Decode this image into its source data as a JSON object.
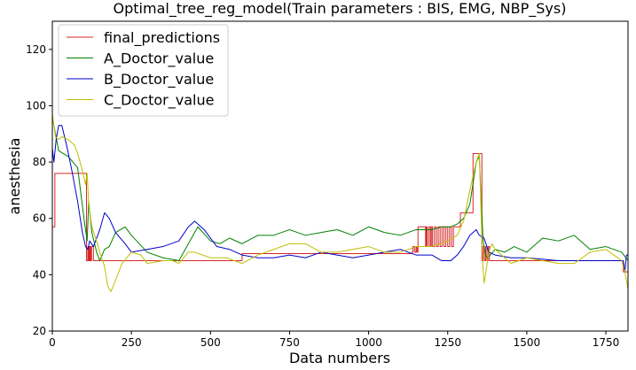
{
  "chart_data": {
    "type": "line",
    "title": "Optimal_tree_reg_model(Train parameters : BIS, EMG, NBP_Sys)",
    "xlabel": "Data numbers",
    "ylabel": "anesthesia",
    "xlim": [
      0,
      1820
    ],
    "ylim": [
      20,
      130
    ],
    "xticks": [
      0,
      250,
      500,
      750,
      1000,
      1250,
      1500,
      1750
    ],
    "yticks": [
      20,
      40,
      60,
      80,
      100,
      120
    ],
    "grid": false,
    "legend_position": "top-left",
    "series": [
      {
        "name": "final_predictions",
        "color": "#d62728",
        "style": "step",
        "x": [
          0,
          8,
          10,
          108,
          112,
          114,
          116,
          118,
          120,
          122,
          124,
          130,
          600,
          620,
          1000,
          1138,
          1140,
          1145,
          1150,
          1153,
          1156,
          1172,
          1180,
          1182,
          1185,
          1190,
          1195,
          1198,
          1202,
          1208,
          1214,
          1220,
          1226,
          1232,
          1238,
          1244,
          1250,
          1256,
          1262,
          1268,
          1274,
          1280,
          1290,
          1300,
          1330,
          1332,
          1358,
          1362,
          1366,
          1370,
          1374,
          1378,
          1382,
          1400,
          1600,
          1800,
          1805,
          1820
        ],
        "y": [
          57,
          76,
          76,
          45,
          50,
          45,
          50,
          45,
          50,
          45,
          50,
          45,
          47.5,
          47.5,
          47.5,
          48,
          50,
          48,
          50,
          48,
          57,
          57,
          50,
          57,
          50,
          57,
          50,
          57,
          50,
          57,
          50,
          57,
          50,
          57,
          50,
          57,
          50,
          57,
          50,
          57,
          57,
          57,
          62,
          62,
          83,
          83,
          45,
          50,
          45,
          50,
          45,
          50,
          45,
          45,
          45,
          45,
          41,
          45
        ]
      },
      {
        "name": "A_Doctor_value",
        "color": "#008000",
        "style": "line",
        "x": [
          0,
          20,
          50,
          80,
          100,
          110,
          115,
          125,
          140,
          150,
          165,
          180,
          200,
          230,
          250,
          300,
          350,
          400,
          430,
          460,
          500,
          530,
          560,
          600,
          650,
          700,
          750,
          800,
          850,
          900,
          950,
          1000,
          1050,
          1100,
          1150,
          1200,
          1230,
          1260,
          1280,
          1300,
          1320,
          1340,
          1350,
          1355,
          1362,
          1370,
          1375,
          1385,
          1400,
          1430,
          1460,
          1500,
          1550,
          1600,
          1650,
          1700,
          1750,
          1800,
          1820
        ],
        "y": [
          96,
          84,
          82,
          78,
          60,
          52,
          66,
          55,
          48,
          45,
          49,
          50,
          55,
          57,
          54,
          48,
          46,
          45,
          51,
          57,
          52,
          51,
          53,
          51,
          54,
          54,
          56,
          54,
          55,
          56,
          54,
          57,
          55,
          54,
          56,
          56,
          57,
          57,
          58,
          60,
          65,
          80,
          82,
          68,
          52,
          47,
          46,
          47,
          49,
          48,
          50,
          48,
          53,
          52,
          54,
          49,
          50,
          48,
          45
        ]
      },
      {
        "name": "B_Doctor_value",
        "color": "#0000cc",
        "style": "line",
        "x": [
          0,
          5,
          12,
          20,
          30,
          45,
          60,
          80,
          95,
          105,
          112,
          118,
          130,
          150,
          165,
          180,
          200,
          230,
          250,
          300,
          350,
          400,
          430,
          450,
          480,
          520,
          560,
          600,
          650,
          700,
          750,
          800,
          850,
          900,
          950,
          1000,
          1050,
          1100,
          1150,
          1200,
          1230,
          1260,
          1280,
          1300,
          1320,
          1340,
          1350,
          1365,
          1380,
          1400,
          1450,
          1500,
          1600,
          1700,
          1780,
          1805,
          1810,
          1815,
          1820
        ],
        "y": [
          85,
          80,
          88,
          93,
          93,
          86,
          78,
          66,
          55,
          50,
          49,
          52,
          50,
          56,
          62,
          60,
          55,
          51,
          48,
          49,
          50,
          52,
          57,
          59,
          56,
          50,
          49,
          47,
          46,
          46,
          47,
          46,
          48,
          47,
          46,
          47,
          48,
          49,
          47,
          47,
          45,
          45,
          47,
          50,
          54,
          56,
          54,
          53,
          48,
          47,
          46,
          46,
          45,
          45,
          45,
          45,
          41,
          47,
          47
        ]
      },
      {
        "name": "C_Doctor_value",
        "color": "#bfbf00",
        "style": "line",
        "x": [
          0,
          10,
          20,
          30,
          50,
          60,
          70,
          80,
          95,
          105,
          110,
          115,
          125,
          140,
          150,
          165,
          175,
          185,
          200,
          220,
          250,
          280,
          300,
          350,
          380,
          400,
          430,
          450,
          500,
          550,
          600,
          650,
          700,
          750,
          800,
          850,
          900,
          950,
          1000,
          1050,
          1100,
          1150,
          1200,
          1250,
          1280,
          1300,
          1320,
          1340,
          1350,
          1360,
          1365,
          1372,
          1380,
          1390,
          1400,
          1450,
          1500,
          1550,
          1600,
          1650,
          1700,
          1750,
          1800,
          1810,
          1820
        ],
        "y": [
          97,
          89,
          88,
          89,
          88,
          87,
          86,
          83,
          77,
          72,
          76,
          65,
          57,
          52,
          48,
          43,
          36,
          34,
          38,
          44,
          48,
          47,
          44,
          45,
          45,
          44,
          48,
          48,
          46,
          46,
          44,
          47,
          49,
          51,
          51,
          48,
          48,
          49,
          50,
          48,
          48,
          50,
          50,
          52,
          54,
          59,
          70,
          80,
          83,
          45,
          37,
          42,
          48,
          51,
          49,
          44,
          46,
          45,
          44,
          44,
          48,
          49,
          45,
          41,
          35
        ]
      }
    ]
  }
}
